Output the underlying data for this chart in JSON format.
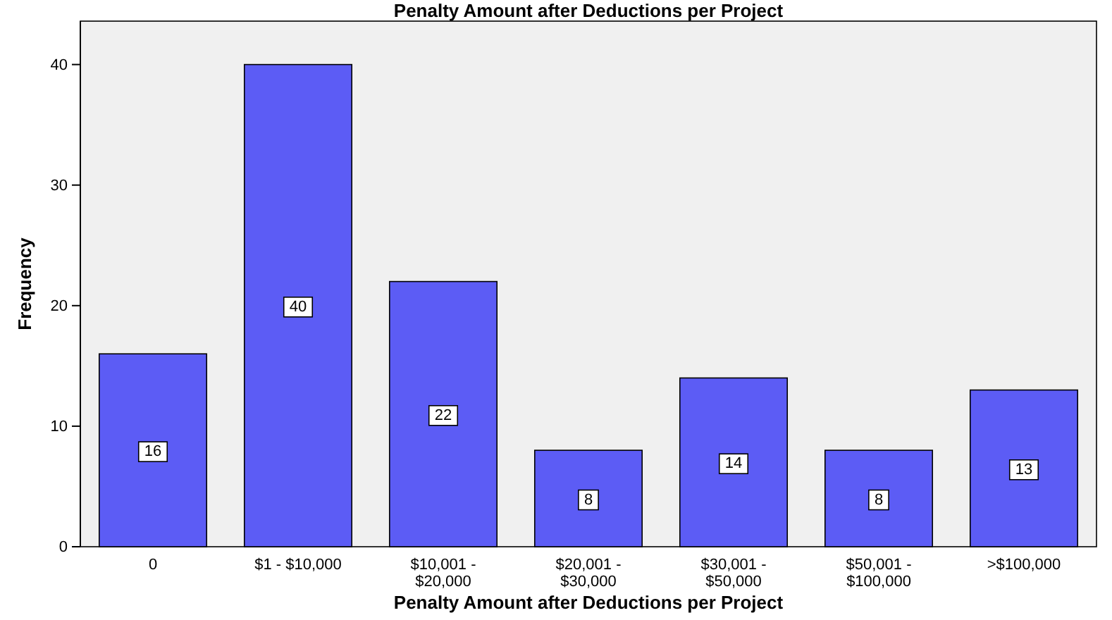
{
  "chart_data": {
    "type": "bar",
    "title": "Penalty Amount after Deductions per Project",
    "xlabel": "Penalty Amount after Deductions per Project",
    "ylabel": "Frequency",
    "categories": [
      "0",
      "$1 - $10,000",
      "$10,001 - $20,000",
      "$20,001 - $30,000",
      "$30,001 - $50,000",
      "$50,001 - $100,000",
      ">$100,000"
    ],
    "values": [
      16,
      40,
      22,
      8,
      14,
      8,
      13
    ],
    "color": "#5c5cf5",
    "ylim": [
      0,
      43.6
    ],
    "yticks": [
      0,
      10,
      20,
      30,
      40
    ],
    "grid": false,
    "data_labels": true
  }
}
